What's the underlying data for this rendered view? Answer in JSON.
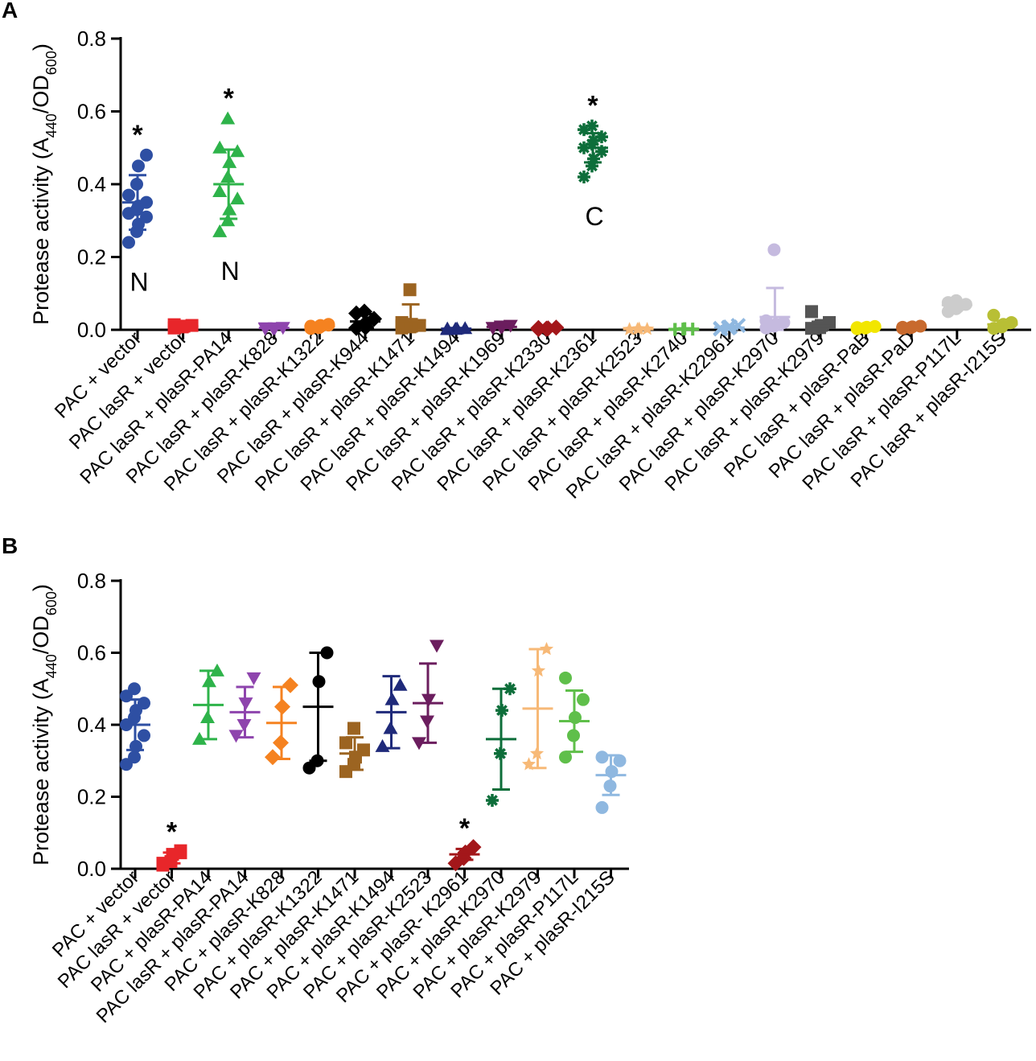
{
  "chart_data": [
    {
      "panel": "A",
      "type": "scatter",
      "ylabel_main": "Protease activity (A",
      "ylabel_sub1": "440",
      "ylabel_mid": "/OD",
      "ylabel_sub2": "600",
      "ylabel_end": ")",
      "ylim": [
        0,
        0.8
      ],
      "yticks": [
        "0.0",
        "0.2",
        "0.4",
        "0.6",
        "0.8"
      ],
      "groups": [
        {
          "label": "PAC + vector",
          "color": "#2e4fa3",
          "marker": "circle",
          "mean": 0.35,
          "sd": 0.075,
          "points": [
            0.24,
            0.27,
            0.29,
            0.31,
            0.32,
            0.33,
            0.34,
            0.35,
            0.37,
            0.4,
            0.45,
            0.48
          ],
          "star": "*",
          "letter": "N"
        },
        {
          "label": "PAC lasR + vector",
          "color": "#e8262a",
          "marker": "square",
          "mean": 0.01,
          "sd": 0.004,
          "points": [
            0.005,
            0.008,
            0.01,
            0.012,
            0.014,
            0.01
          ]
        },
        {
          "label": "PAC lasR + plasR-PA14",
          "color": "#2eb34a",
          "marker": "triangle",
          "mean": 0.4,
          "sd": 0.095,
          "points": [
            0.27,
            0.3,
            0.33,
            0.36,
            0.38,
            0.42,
            0.46,
            0.49,
            0.5,
            0.58
          ],
          "star": "*",
          "letter": "N"
        },
        {
          "label": "PAC lasR + plasR-K828",
          "color": "#8e44ad",
          "marker": "triangle-down",
          "mean": 0.005,
          "sd": 0.002,
          "points": [
            0.003,
            0.004,
            0.005,
            0.006,
            0.005,
            0.004
          ]
        },
        {
          "label": "PAC lasR + plasR-K1322",
          "color": "#f58220",
          "marker": "circle",
          "mean": 0.01,
          "sd": 0.004,
          "points": [
            0.004,
            0.008,
            0.012,
            0.015,
            0.01,
            0.006,
            0.009,
            0.013
          ]
        },
        {
          "label": "PAC lasR + plasR-K944",
          "color": "#000000",
          "marker": "diamond",
          "mean": 0.023,
          "sd": 0.02,
          "points": [
            0.005,
            0.01,
            0.02,
            0.03,
            0.045,
            0.05,
            0.008
          ]
        },
        {
          "label": "PAC lasR + plasR-K1471",
          "color": "#9c6421",
          "marker": "square",
          "mean": 0.025,
          "sd": 0.045,
          "points": [
            0.005,
            0.008,
            0.01,
            0.012,
            0.02,
            0.11,
            0.015
          ]
        },
        {
          "label": "PAC lasR + plasR-K1494",
          "color": "#1f2a7a",
          "marker": "triangle",
          "mean": 0.003,
          "sd": 0.002,
          "points": [
            0.001,
            0.002,
            0.003,
            0.004,
            0.003,
            0.002
          ]
        },
        {
          "label": "PAC lasR + plasR-K1969",
          "color": "#6b1d5e",
          "marker": "triangle-down",
          "mean": 0.008,
          "sd": 0.003,
          "points": [
            0.005,
            0.007,
            0.009,
            0.012,
            0.006,
            0.01
          ]
        },
        {
          "label": "PAC lasR + plasR-K2330",
          "color": "#a3171a",
          "marker": "diamond",
          "mean": 0.004,
          "sd": 0.002,
          "points": [
            0.002,
            0.003,
            0.004,
            0.006,
            0.005,
            0.003
          ]
        },
        {
          "label": "PAC lasR + plasR-K2361",
          "color": "#0d6e3a",
          "marker": "asterisk",
          "mean": 0.5,
          "sd": 0.04,
          "points": [
            0.42,
            0.45,
            0.47,
            0.49,
            0.5,
            0.51,
            0.52,
            0.53,
            0.55,
            0.56
          ],
          "star": "*",
          "letter": "C"
        },
        {
          "label": "PAC lasR + plasR-K2523",
          "color": "#f7b977",
          "marker": "star",
          "mean": 0.002,
          "sd": 0.001,
          "points": [
            0.001,
            0.002,
            0.003,
            0.002,
            0.001
          ]
        },
        {
          "label": "PAC lasR + plasR-K2740",
          "color": "#5fbf4a",
          "marker": "plus",
          "mean": 0.002,
          "sd": 0.001,
          "points": [
            0.001,
            0.002,
            0.003,
            0.002,
            0.001
          ]
        },
        {
          "label": "PAC lasR + plasR-K22961",
          "color": "#8fb8e0",
          "marker": "cross",
          "mean": 0.006,
          "sd": 0.004,
          "points": [
            0.002,
            0.005,
            0.008,
            0.012,
            0.004,
            0.007
          ]
        },
        {
          "label": "PAC lasR + plasR-K2970",
          "color": "#c5badf",
          "marker": "circle",
          "mean": 0.035,
          "sd": 0.08,
          "points": [
            0.005,
            0.01,
            0.015,
            0.02,
            0.025,
            0.22
          ]
        },
        {
          "label": "PAC lasR + plasR-K2979",
          "color": "#555555",
          "marker": "square",
          "mean": 0.012,
          "sd": 0.01,
          "points": [
            0.004,
            0.008,
            0.012,
            0.02,
            0.05,
            0.006
          ]
        },
        {
          "label": "PAC lasR + plasR-PaB",
          "color": "#f2e600",
          "marker": "circle",
          "mean": 0.006,
          "sd": 0.003,
          "points": [
            0.003,
            0.005,
            0.007,
            0.009,
            0.006
          ]
        },
        {
          "label": "PAC lasR + plasR-PaD",
          "color": "#c86a2e",
          "marker": "circle",
          "mean": 0.007,
          "sd": 0.003,
          "points": [
            0.004,
            0.006,
            0.008,
            0.01,
            0.007
          ]
        },
        {
          "label": "PAC lasR + plasR-P117L",
          "color": "#cccccc",
          "marker": "circle",
          "mean": 0.068,
          "sd": 0.012,
          "points": [
            0.05,
            0.058,
            0.065,
            0.07,
            0.075,
            0.08,
            0.062
          ]
        },
        {
          "label": "PAC lasR + plasR-I215S",
          "color": "#b8bf35",
          "marker": "circle",
          "mean": 0.015,
          "sd": 0.01,
          "points": [
            0.004,
            0.01,
            0.015,
            0.02,
            0.04,
            0.008
          ]
        }
      ]
    },
    {
      "panel": "B",
      "type": "scatter",
      "ylabel_main": "Protease activity (A",
      "ylabel_sub1": "440",
      "ylabel_mid": "/OD",
      "ylabel_sub2": "600",
      "ylabel_end": ")",
      "ylim": [
        0,
        0.8
      ],
      "yticks": [
        "0.0",
        "0.2",
        "0.4",
        "0.6",
        "0.8"
      ],
      "groups": [
        {
          "label": "PAC + vector",
          "color": "#2e4fa3",
          "marker": "circle",
          "mean": 0.4,
          "sd": 0.07,
          "points": [
            0.29,
            0.31,
            0.34,
            0.37,
            0.4,
            0.42,
            0.44,
            0.46,
            0.48,
            0.5
          ]
        },
        {
          "label": "PAC lasR + vector",
          "color": "#e8262a",
          "marker": "square",
          "mean": 0.03,
          "sd": 0.015,
          "points": [
            0.01,
            0.02,
            0.04,
            0.05
          ],
          "star": "*"
        },
        {
          "label": "PAC + plasR-PA14",
          "color": "#2eb34a",
          "marker": "triangle",
          "mean": 0.455,
          "sd": 0.095,
          "points": [
            0.36,
            0.42,
            0.52,
            0.55
          ]
        },
        {
          "label": "PAC lasR + plasR-PA14",
          "color": "#8e44ad",
          "marker": "triangle-down",
          "mean": 0.435,
          "sd": 0.07,
          "points": [
            0.37,
            0.4,
            0.46,
            0.53
          ]
        },
        {
          "label": "PAC + plasR-K828",
          "color": "#f58220",
          "marker": "diamond",
          "mean": 0.405,
          "sd": 0.1,
          "points": [
            0.31,
            0.35,
            0.45,
            0.51
          ]
        },
        {
          "label": "PAC + plasR-K1322",
          "color": "#000000",
          "marker": "circle",
          "mean": 0.45,
          "sd": 0.15,
          "points": [
            0.28,
            0.3,
            0.52,
            0.6
          ]
        },
        {
          "label": "PAC + plasR-K1471",
          "color": "#9c6421",
          "marker": "square",
          "mean": 0.32,
          "sd": 0.045,
          "points": [
            0.27,
            0.29,
            0.31,
            0.33,
            0.35,
            0.39
          ]
        },
        {
          "label": "PAC + plasR-K1494",
          "color": "#1f2a7a",
          "marker": "triangle",
          "mean": 0.435,
          "sd": 0.1,
          "points": [
            0.34,
            0.39,
            0.47,
            0.51
          ]
        },
        {
          "label": "PAC + plasR-K2523",
          "color": "#6b1d5e",
          "marker": "triangle-down",
          "mean": 0.46,
          "sd": 0.11,
          "points": [
            0.35,
            0.41,
            0.47,
            0.62
          ]
        },
        {
          "label": "PAC + plasR- K2961",
          "color": "#a3171a",
          "marker": "diamond",
          "mean": 0.04,
          "sd": 0.015,
          "points": [
            0.015,
            0.03,
            0.045,
            0.06
          ],
          "star": "*"
        },
        {
          "label": "PAC + plasR-K2970",
          "color": "#0d6e3a",
          "marker": "asterisk",
          "mean": 0.36,
          "sd": 0.14,
          "points": [
            0.19,
            0.32,
            0.44,
            0.5
          ]
        },
        {
          "label": "PAC + plasR-K2979",
          "color": "#f7b977",
          "marker": "star",
          "mean": 0.445,
          "sd": 0.165,
          "points": [
            0.29,
            0.32,
            0.55,
            0.61
          ]
        },
        {
          "label": "PAC + plasR-P117L",
          "color": "#5fbf4a",
          "marker": "circle",
          "mean": 0.41,
          "sd": 0.085,
          "points": [
            0.31,
            0.37,
            0.42,
            0.47,
            0.53
          ]
        },
        {
          "label": "PAC + plasR-I215S",
          "color": "#8fb8e0",
          "marker": "circle",
          "mean": 0.26,
          "sd": 0.055,
          "points": [
            0.17,
            0.23,
            0.27,
            0.3,
            0.31
          ]
        }
      ]
    }
  ]
}
